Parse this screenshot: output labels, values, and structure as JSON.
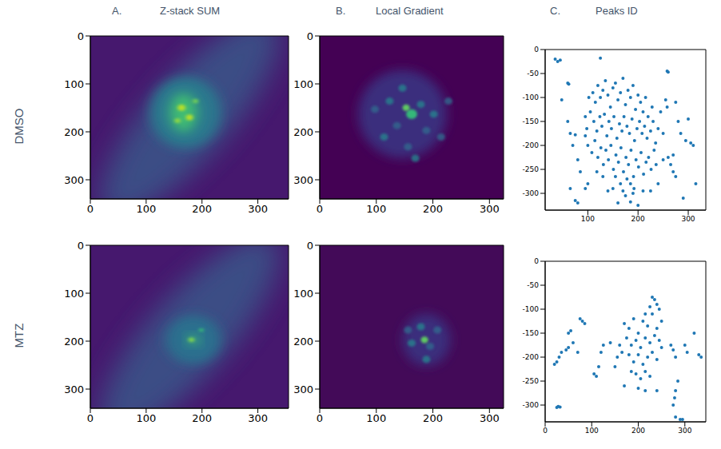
{
  "columns": [
    {
      "letter": "A.",
      "title": "Z-stack SUM"
    },
    {
      "letter": "B.",
      "title": "Local Gradient"
    },
    {
      "letter": "C.",
      "title": "Peaks ID"
    }
  ],
  "rows": [
    "DMSO",
    "MTZ"
  ],
  "chart_data": [
    {
      "type": "image",
      "xlim": [
        0,
        355
      ],
      "ylim": [
        340,
        0
      ],
      "xticks": [
        0,
        100,
        200,
        300
      ],
      "yticks": [
        0,
        100,
        200,
        300
      ]
    },
    {
      "type": "image",
      "xlim": [
        0,
        325
      ],
      "ylim": [
        340,
        0
      ],
      "xticks": [
        0,
        100,
        200,
        300
      ],
      "yticks": [
        0,
        100,
        200,
        300
      ]
    },
    {
      "type": "scatter",
      "color": "#1f77b4",
      "marker": "circle",
      "xlim": [
        15,
        335
      ],
      "ylim": [
        -335,
        0
      ],
      "xticks": [
        100,
        200,
        300
      ],
      "yticks": [
        0,
        -50,
        -100,
        -150,
        -200,
        -250,
        -300
      ],
      "x": [
        35,
        40,
        45,
        125,
        60,
        62,
        258,
        260,
        48,
        60,
        65,
        70,
        75,
        80,
        85,
        65,
        75,
        80,
        95,
        100,
        95,
        300,
        305,
        310,
        295,
        315,
        290,
        270,
        275,
        260,
        265,
        250,
        255,
        258,
        275,
        280,
        285,
        270,
        240,
        225,
        160,
        185,
        210,
        200,
        175,
        140,
        150,
        110,
        115,
        120,
        125,
        130,
        135,
        140,
        145,
        150,
        155,
        160,
        165,
        170,
        175,
        180,
        185,
        190,
        195,
        200,
        205,
        210,
        215,
        220,
        105,
        112,
        118,
        124,
        128,
        133,
        138,
        142,
        147,
        152,
        158,
        163,
        168,
        172,
        178,
        183,
        188,
        193,
        198,
        203,
        208,
        213,
        218,
        225,
        230,
        235,
        240,
        100,
        108,
        114,
        120,
        126,
        131,
        136,
        141,
        146,
        151,
        156,
        161,
        166,
        171,
        176,
        181,
        186,
        191,
        196,
        201,
        206,
        211,
        216,
        221,
        226,
        185,
        178,
        165,
        190,
        192,
        170,
        155,
        130,
        118,
        98,
        95,
        102,
        245,
        250,
        232,
        228,
        236
      ],
      "values": [
        -20,
        -25,
        -22,
        -18,
        -70,
        -72,
        -45,
        -47,
        -105,
        -150,
        -175,
        -200,
        -178,
        -230,
        -255,
        -290,
        -315,
        -320,
        -290,
        -280,
        -180,
        -145,
        -195,
        -200,
        -190,
        -280,
        -310,
        -220,
        -265,
        -225,
        -240,
        -230,
        -105,
        -120,
        -110,
        -150,
        -175,
        -255,
        -280,
        -295,
        -320,
        -318,
        -295,
        -325,
        -305,
        -295,
        -290,
        -90,
        -110,
        -75,
        -100,
        -85,
        -65,
        -95,
        -120,
        -80,
        -70,
        -105,
        -90,
        -60,
        -115,
        -85,
        -100,
        -75,
        -125,
        -95,
        -110,
        -130,
        -100,
        -140,
        -130,
        -150,
        -170,
        -140,
        -160,
        -135,
        -180,
        -150,
        -165,
        -140,
        -185,
        -155,
        -170,
        -140,
        -160,
        -175,
        -145,
        -190,
        -165,
        -150,
        -175,
        -160,
        -185,
        -170,
        -150,
        -195,
        -165,
        -200,
        -215,
        -190,
        -225,
        -205,
        -240,
        -210,
        -230,
        -200,
        -250,
        -220,
        -235,
        -205,
        -255,
        -225,
        -240,
        -210,
        -265,
        -230,
        -245,
        -215,
        -260,
        -235,
        -225,
        -250,
        -280,
        -270,
        -280,
        -300,
        -290,
        -295,
        -265,
        -265,
        -255,
        -165,
        -140,
        -100,
        -130,
        -175,
        -210,
        -120,
        -240
      ]
    },
    {
      "type": "image",
      "xlim": [
        0,
        355
      ],
      "ylim": [
        340,
        0
      ],
      "xticks": [
        0,
        100,
        200,
        300
      ],
      "yticks": [
        0,
        100,
        200,
        300
      ]
    },
    {
      "type": "image",
      "xlim": [
        0,
        325
      ],
      "ylim": [
        340,
        0
      ],
      "xticks": [
        0,
        100,
        200,
        300
      ],
      "yticks": [
        0,
        100,
        200,
        300
      ]
    },
    {
      "type": "scatter",
      "color": "#1f77b4",
      "marker": "circle",
      "xlim": [
        0,
        345
      ],
      "ylim": [
        -335,
        0
      ],
      "xticks": [
        0,
        100,
        200,
        300
      ],
      "yticks": [
        0,
        -50,
        -100,
        -150,
        -200,
        -250,
        -300
      ],
      "x": [
        25,
        28,
        32,
        20,
        25,
        30,
        35,
        45,
        50,
        60,
        70,
        50,
        55,
        75,
        80,
        85,
        110,
        115,
        105,
        120,
        125,
        140,
        150,
        240,
        270,
        275,
        280,
        285,
        280,
        278,
        275,
        280,
        290,
        295,
        320,
        330,
        335,
        300,
        305,
        230,
        235,
        240,
        215,
        170,
        200,
        170,
        180,
        190,
        200,
        210,
        220,
        230,
        240,
        250,
        175,
        185,
        195,
        205,
        215,
        225,
        235,
        245,
        180,
        190,
        200,
        210,
        220,
        230,
        240,
        165,
        195,
        205,
        215,
        225,
        185,
        160,
        155,
        250,
        245,
        225,
        215
      ],
      "values": [
        -305,
        -303,
        -304,
        -215,
        -210,
        -200,
        -190,
        -185,
        -180,
        -170,
        -190,
        -150,
        -145,
        -120,
        -125,
        -130,
        -240,
        -220,
        -235,
        -190,
        -175,
        -170,
        -220,
        -90,
        -175,
        -185,
        -200,
        -250,
        -270,
        -285,
        -300,
        -325,
        -330,
        -330,
        -150,
        -195,
        -200,
        -175,
        -190,
        -75,
        -80,
        -270,
        -270,
        -260,
        -265,
        -130,
        -140,
        -120,
        -150,
        -125,
        -135,
        -110,
        -140,
        -125,
        -160,
        -175,
        -165,
        -180,
        -160,
        -170,
        -155,
        -165,
        -195,
        -210,
        -195,
        -215,
        -200,
        -190,
        -205,
        -190,
        -235,
        -245,
        -230,
        -240,
        -230,
        -175,
        -200,
        -180,
        -100,
        -95,
        -110
      ]
    }
  ]
}
